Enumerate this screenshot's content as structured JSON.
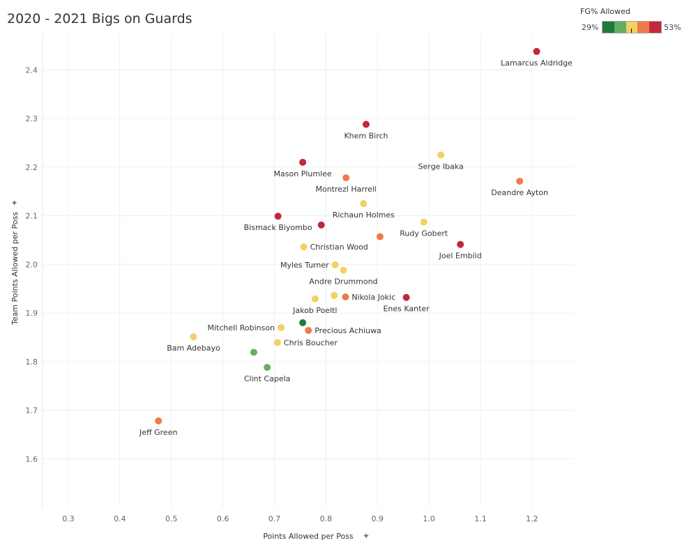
{
  "chart_data": {
    "type": "scatter",
    "title": "2020 - 2021 Bigs on Guards",
    "xlabel": "Points Allowed per Poss",
    "ylabel": "Team Points Allowed per Poss",
    "xlim": [
      0.25,
      1.28
    ],
    "ylim": [
      1.5,
      2.475
    ],
    "xticks": [
      "0.3",
      "0.4",
      "0.5",
      "0.6",
      "0.7",
      "0.8",
      "0.9",
      "1.0",
      "1.1",
      "1.2"
    ],
    "yticks": [
      "1.6",
      "1.7",
      "1.8",
      "1.9",
      "2.0",
      "2.1",
      "2.2",
      "2.3",
      "2.4"
    ],
    "grid": true,
    "legend": {
      "title": "FG% Allowed",
      "min": "29%",
      "max": "53%",
      "placement": "top-right",
      "colors": [
        "#1f7a3f",
        "#66ad64",
        "#f4cf65",
        "#ef7a4a",
        "#c1283d"
      ]
    },
    "points": [
      {
        "name": "Lamarcus Aldridge",
        "x": 1.209,
        "y": 2.438,
        "bin": 4,
        "label": "below"
      },
      {
        "name": "Khem Birch",
        "x": 0.878,
        "y": 2.288,
        "bin": 4,
        "label": "below"
      },
      {
        "name": "Serge Ibaka",
        "x": 1.023,
        "y": 2.225,
        "bin": 2,
        "label": "below"
      },
      {
        "name": "Mason Plumlee",
        "x": 0.755,
        "y": 2.21,
        "bin": 4,
        "label": "below"
      },
      {
        "name": "Deandre Ayton",
        "x": 1.176,
        "y": 2.171,
        "bin": 3,
        "label": "below"
      },
      {
        "name": "Montrezl Harrell",
        "x": 0.839,
        "y": 2.178,
        "bin": 3,
        "label": "below"
      },
      {
        "name": "Richaun Holmes",
        "x": 0.873,
        "y": 2.125,
        "bin": 2,
        "label": "below"
      },
      {
        "name": "Bismack Biyombo",
        "x": 0.707,
        "y": 2.099,
        "bin": 4,
        "label": "below"
      },
      {
        "name": "",
        "x": 0.791,
        "y": 2.081,
        "bin": 4,
        "label": "none"
      },
      {
        "name": "Rudy Gobert",
        "x": 0.99,
        "y": 2.087,
        "bin": 2,
        "label": "below"
      },
      {
        "name": "",
        "x": 0.905,
        "y": 2.057,
        "bin": 3,
        "label": "none"
      },
      {
        "name": "Christian Wood",
        "x": 0.757,
        "y": 2.036,
        "bin": 2,
        "label": "right"
      },
      {
        "name": "Joel Embiid",
        "x": 1.061,
        "y": 2.041,
        "bin": 4,
        "label": "below"
      },
      {
        "name": "Myles Turner",
        "x": 0.818,
        "y": 1.999,
        "bin": 2,
        "label": "left"
      },
      {
        "name": "Andre Drummond",
        "x": 0.834,
        "y": 1.988,
        "bin": 2,
        "label": "below"
      },
      {
        "name": "",
        "x": 0.816,
        "y": 1.936,
        "bin": 2,
        "label": "none"
      },
      {
        "name": "Nikola Jokic",
        "x": 0.838,
        "y": 1.933,
        "bin": 3,
        "label": "right"
      },
      {
        "name": "Jakob Poeltl",
        "x": 0.779,
        "y": 1.929,
        "bin": 2,
        "label": "below"
      },
      {
        "name": "Enes Kanter",
        "x": 0.956,
        "y": 1.932,
        "bin": 4,
        "label": "below"
      },
      {
        "name": "Mitchell Robinson",
        "x": 0.713,
        "y": 1.87,
        "bin": 2,
        "label": "left"
      },
      {
        "name": "",
        "x": 0.755,
        "y": 1.88,
        "bin": 0,
        "label": "none"
      },
      {
        "name": "Precious Achiuwa",
        "x": 0.766,
        "y": 1.864,
        "bin": 3,
        "label": "right"
      },
      {
        "name": "Bam Adebayo",
        "x": 0.543,
        "y": 1.851,
        "bin": 2,
        "label": "below"
      },
      {
        "name": "Chris Boucher",
        "x": 0.706,
        "y": 1.839,
        "bin": 2,
        "label": "right"
      },
      {
        "name": "",
        "x": 0.66,
        "y": 1.819,
        "bin": 1,
        "label": "none"
      },
      {
        "name": "Clint Capela",
        "x": 0.686,
        "y": 1.788,
        "bin": 1,
        "label": "below"
      },
      {
        "name": "Jeff Green",
        "x": 0.475,
        "y": 1.678,
        "bin": 3,
        "label": "below"
      }
    ]
  }
}
